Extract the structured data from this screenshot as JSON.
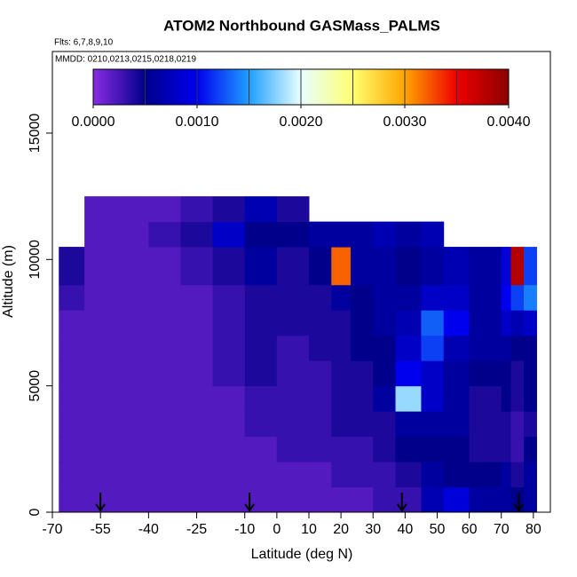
{
  "chart_data": {
    "type": "heatmap",
    "title": "ATOM2 Northbound GASMass_PALMS",
    "subtitle": "Flts: 6,7,8,9,10",
    "annotation": "MMDD: 0210,0213,0215,0218,0219",
    "x_label": "Latitude (deg N)",
    "y_label": "Altitude (m)",
    "xlim": [
      -70,
      85.3
    ],
    "ylim": [
      0,
      18230
    ],
    "xticks": [
      -70,
      -55,
      -40,
      -25,
      -10,
      0,
      10,
      20,
      30,
      40,
      50,
      60,
      70,
      80
    ],
    "yticks": [
      0,
      5000,
      10000,
      15000
    ],
    "lat_edges": [
      -68,
      -60,
      -50,
      -40,
      -30,
      -20,
      -10,
      0,
      10,
      17,
      23,
      30,
      37,
      45,
      52,
      60,
      70,
      73,
      77,
      81
    ],
    "alt_edges": [
      0,
      1000,
      2000,
      3000,
      4000,
      5000,
      6000,
      7000,
      8000,
      9000,
      10500,
      11500,
      12500
    ],
    "values": [
      [
        0.0002,
        0.0002,
        0.0002,
        0.0002,
        0.0002,
        0.0002,
        0.0002,
        0.0002,
        0.0002,
        0.0002,
        0.0002,
        0.0003,
        0.0003,
        0.0007,
        0.0009,
        0.0006,
        0.0006,
        0.0005,
        0.0006
      ],
      [
        0.0002,
        0.0002,
        0.0002,
        0.0002,
        0.0002,
        0.0002,
        0.0002,
        0.0002,
        0.0002,
        0.0003,
        0.0003,
        0.0003,
        0.0004,
        0.0006,
        0.0005,
        0.0005,
        0.0006,
        0.0004,
        0.0006
      ],
      [
        0.0002,
        0.0002,
        0.0002,
        0.0002,
        0.0002,
        0.0002,
        0.0002,
        0.0003,
        0.0003,
        0.0003,
        0.0003,
        0.0004,
        0.0005,
        0.0005,
        0.0005,
        0.0004,
        0.0004,
        0.0003,
        0.0005
      ],
      [
        0.0002,
        0.0002,
        0.0002,
        0.0002,
        0.0002,
        0.0002,
        0.0003,
        0.0003,
        0.0003,
        0.0004,
        0.0004,
        0.0004,
        0.0006,
        0.0006,
        0.0006,
        0.0004,
        0.0004,
        0.0003,
        0.0004
      ],
      [
        0.0002,
        0.0002,
        0.0002,
        0.0002,
        0.0002,
        0.0002,
        0.0003,
        0.0003,
        0.0003,
        0.0004,
        0.0004,
        0.0006,
        0.0018,
        0.0008,
        0.0006,
        0.0004,
        0.0005,
        0.0004,
        0.0005
      ],
      [
        0.0002,
        0.0002,
        0.0002,
        0.0002,
        0.0002,
        0.0003,
        0.0004,
        0.0003,
        0.0003,
        0.0004,
        0.0004,
        0.0005,
        0.001,
        0.0008,
        0.0006,
        0.0005,
        0.0005,
        0.0004,
        0.0005
      ],
      [
        0.0002,
        0.0002,
        0.0002,
        0.0002,
        0.0002,
        0.0003,
        0.0004,
        0.0003,
        0.0004,
        0.0004,
        0.0005,
        0.0005,
        0.0008,
        0.0012,
        0.0007,
        0.0006,
        0.0006,
        0.0005,
        0.0005
      ],
      [
        0.0002,
        0.0002,
        0.0002,
        0.0002,
        0.0002,
        0.0003,
        0.0004,
        0.0004,
        0.0004,
        0.0004,
        0.0005,
        0.0006,
        0.0007,
        0.0013,
        0.001,
        0.0006,
        0.0008,
        0.0007,
        0.0008
      ],
      [
        0.0003,
        0.0002,
        0.0002,
        0.0002,
        0.0002,
        0.0003,
        0.0004,
        0.0004,
        0.0004,
        0.0006,
        0.0005,
        0.0006,
        0.0006,
        0.0008,
        0.0008,
        0.0006,
        0.001,
        0.0012,
        0.0014
      ],
      [
        0.0004,
        0.0002,
        0.0002,
        0.0002,
        0.0003,
        0.0004,
        0.0006,
        0.0004,
        0.0005,
        0.0032,
        0.0006,
        0.0006,
        0.0005,
        0.0006,
        0.0007,
        0.0006,
        0.0009,
        0.0038,
        0.0012
      ],
      [
        null,
        0.0002,
        0.0002,
        0.0003,
        0.0004,
        0.0008,
        0.0005,
        0.0005,
        0.0006,
        0.0006,
        0.0006,
        0.0007,
        0.0006,
        0.0007,
        null,
        null,
        null,
        null,
        null
      ],
      [
        null,
        0.0002,
        0.0002,
        0.0002,
        0.0003,
        0.0004,
        0.0007,
        0.0004,
        null,
        null,
        null,
        null,
        null,
        null,
        null,
        null,
        null,
        null,
        null
      ]
    ],
    "zlim": [
      0,
      0.004
    ],
    "zticks": [
      {
        "value": 0,
        "label": "0.0000"
      },
      {
        "value": 0.001,
        "label": "0.0010"
      },
      {
        "value": 0.002,
        "label": "0.0020"
      },
      {
        "value": 0.003,
        "label": "0.0030"
      },
      {
        "value": 0.004,
        "label": "0.0040"
      }
    ],
    "colorscale": [
      "#8a2be2",
      "#00008b",
      "#0000ee",
      "#1e9fff",
      "#e8ffff",
      "#ffff70",
      "#ffa500",
      "#ee0000",
      "#8b0000"
    ],
    "arrows": [
      -55,
      -8.5,
      39,
      75.5
    ]
  }
}
